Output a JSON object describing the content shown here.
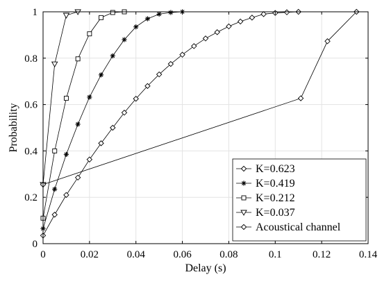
{
  "chart_data": {
    "type": "line",
    "xlabel": "Delay (s)",
    "ylabel": "Probability",
    "xlim": [
      0,
      0.14
    ],
    "ylim": [
      0,
      1
    ],
    "grid": true,
    "legend_position": "bottom-right",
    "x_ticks": [
      0,
      0.02,
      0.04,
      0.06,
      0.08,
      0.1,
      0.12,
      0.14
    ],
    "x_tick_labels": [
      "0",
      "0.02",
      "0.04",
      "0.06",
      "0.08",
      "0.1",
      "0.12",
      "0.14"
    ],
    "y_ticks": [
      0,
      0.2,
      0.4,
      0.6,
      0.8,
      1
    ],
    "y_tick_labels": [
      "0",
      "0.2",
      "0.4",
      "0.6",
      "0.8",
      "1"
    ],
    "series": [
      {
        "name": "K=0.623",
        "marker": "diamond",
        "x": [
          0,
          0.005,
          0.01,
          0.015,
          0.02,
          0.025,
          0.03,
          0.035,
          0.04,
          0.045,
          0.05,
          0.055,
          0.06,
          0.065,
          0.07,
          0.075,
          0.08,
          0.085,
          0.09,
          0.095,
          0.1,
          0.105,
          0.11
        ],
        "y": [
          0.035,
          0.125,
          0.21,
          0.285,
          0.363,
          0.433,
          0.5,
          0.565,
          0.625,
          0.68,
          0.73,
          0.775,
          0.815,
          0.852,
          0.885,
          0.912,
          0.937,
          0.958,
          0.975,
          0.99,
          0.995,
          0.998,
          1.0
        ]
      },
      {
        "name": "K=0.419",
        "marker": "star",
        "x": [
          0,
          0.005,
          0.01,
          0.015,
          0.02,
          0.025,
          0.03,
          0.035,
          0.04,
          0.045,
          0.05,
          0.055,
          0.06
        ],
        "y": [
          0.065,
          0.235,
          0.385,
          0.515,
          0.632,
          0.728,
          0.81,
          0.88,
          0.935,
          0.97,
          0.99,
          0.997,
          1.0
        ]
      },
      {
        "name": "K=0.212",
        "marker": "square",
        "x": [
          0,
          0.005,
          0.01,
          0.015,
          0.02,
          0.025,
          0.03,
          0.035
        ],
        "y": [
          0.11,
          0.4,
          0.627,
          0.797,
          0.905,
          0.975,
          0.997,
          1.0
        ]
      },
      {
        "name": "K=0.037",
        "marker": "triangle-down",
        "x": [
          0,
          0.005,
          0.01,
          0.015
        ],
        "y": [
          0.255,
          0.775,
          0.985,
          1.0
        ]
      },
      {
        "name": "Acoustical channel",
        "marker": "diamond",
        "x": [
          0,
          0.111,
          0.1225,
          0.135
        ],
        "y": [
          0.255,
          0.627,
          0.873,
          1.0
        ]
      }
    ]
  }
}
